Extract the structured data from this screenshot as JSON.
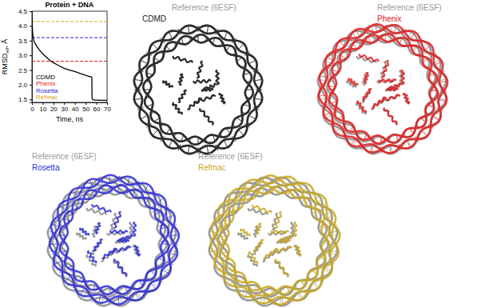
{
  "chart_data": {
    "type": "line",
    "title": "Protein + DNA",
    "xlabel": "Time, ns",
    "ylabel": {
      "main": "RMSD",
      "sub": "ref",
      "after": ", Å"
    },
    "xlim": [
      0,
      70
    ],
    "xticks": [
      0,
      10,
      20,
      30,
      40,
      50,
      60,
      70
    ],
    "ylim": [
      1.4,
      4.5
    ],
    "yticks": [
      1.5,
      {
        "value": 2,
        "label": "2.0"
      },
      2.5,
      {
        "value": 3,
        "label": "3.0"
      },
      3.5,
      {
        "value": 4,
        "label": "4.0"
      },
      4.5
    ],
    "legend": "lower left",
    "series": [
      {
        "name": "CDMD",
        "color": "#000000",
        "line_style": "solid",
        "x": [
          0,
          0.3,
          0.6,
          1,
          1.5,
          2,
          3,
          4,
          5,
          7,
          10,
          13,
          17,
          20,
          25,
          30,
          35,
          40,
          45,
          50,
          55,
          55.8,
          56,
          56.5,
          58,
          60,
          65,
          70
        ],
        "values": [
          4.3,
          4.0,
          3.8,
          3.65,
          3.55,
          3.48,
          3.4,
          3.34,
          3.28,
          3.18,
          3.05,
          2.95,
          2.82,
          2.75,
          2.65,
          2.56,
          2.5,
          2.45,
          2.38,
          2.32,
          2.27,
          2.25,
          1.55,
          1.5,
          1.48,
          1.48,
          1.47,
          1.47
        ]
      },
      {
        "name": "Phenix",
        "color": "#e41a1c",
        "line_style": "dashed",
        "x": [
          0,
          70
        ],
        "values": [
          2.8,
          2.8
        ]
      },
      {
        "name": "Rosetta",
        "color": "#2b2bd6",
        "line_style": "dashed",
        "x": [
          0,
          70
        ],
        "values": [
          3.6,
          3.6
        ]
      },
      {
        "name": "Refmac",
        "color": "#d9a416",
        "line_style": "dashed",
        "x": [
          0,
          70
        ],
        "values": [
          4.15,
          4.15
        ]
      }
    ]
  },
  "panels": [
    {
      "reference": "Reference (6ESF)",
      "method": "CDMD",
      "color": "#1a1a1a"
    },
    {
      "reference": "Reference (6ESF)",
      "method": "Phenix",
      "color": "#e41a1c"
    },
    {
      "reference": "Reference (6ESF)",
      "method": "Rosetta",
      "color": "#2b2bd6"
    },
    {
      "reference": "Reference (6ESF)",
      "method": "Refmac",
      "color": "#c9a81e"
    }
  ]
}
